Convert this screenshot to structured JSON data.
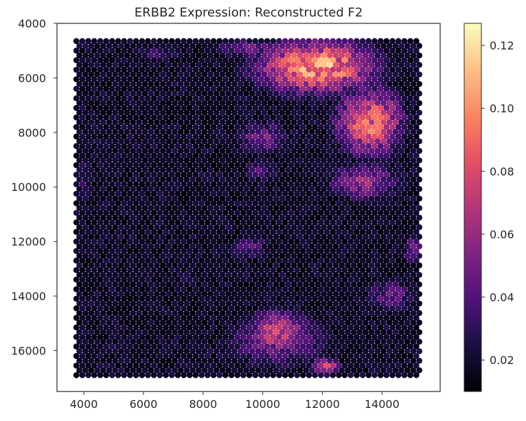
{
  "chart_data": {
    "type": "heatmap",
    "subtype": "hexbin-spatial-scatter",
    "title": "ERBB2 Expression: Reconstructed F2",
    "xlabel": "",
    "ylabel": "",
    "xlim": [
      3100,
      15950
    ],
    "ylim": [
      17500,
      4000
    ],
    "y_inverted": true,
    "x_ticks": [
      4000,
      6000,
      8000,
      10000,
      12000,
      14000
    ],
    "x_tick_labels": [
      "4000",
      "6000",
      "8000",
      "10000",
      "12000",
      "14000"
    ],
    "y_ticks": [
      4000,
      6000,
      8000,
      10000,
      12000,
      14000,
      16000
    ],
    "y_tick_labels": [
      "4000",
      "6000",
      "8000",
      "10000",
      "12000",
      "14000",
      "16000"
    ],
    "grid": false,
    "colormap": "magma",
    "colorbar": {
      "vmin": 0.01,
      "vmax": 0.127,
      "ticks": [
        0.02,
        0.04,
        0.06,
        0.08,
        0.1,
        0.12
      ],
      "tick_labels": [
        "0.02",
        "0.04",
        "0.06",
        "0.08",
        "0.10",
        "0.12"
      ]
    },
    "spot_grid": {
      "x_range": [
        3750,
        15300
      ],
      "y_range": [
        4650,
        16900
      ],
      "spacing_x": 200,
      "spacing_y": 175,
      "background_value": 0.015
    },
    "high_expression_regions": [
      {
        "name": "upper-right-tumor",
        "cx": 11800,
        "cy": 5600,
        "rx": 2700,
        "ry": 1300,
        "value": 0.105
      },
      {
        "name": "upper-right-extension",
        "cx": 13600,
        "cy": 7600,
        "rx": 1500,
        "ry": 1700,
        "value": 0.09
      },
      {
        "name": "upper-band",
        "cx": 9500,
        "cy": 4900,
        "rx": 2000,
        "ry": 500,
        "value": 0.045
      },
      {
        "name": "right-lobe-mid",
        "cx": 13400,
        "cy": 9800,
        "rx": 1700,
        "ry": 1000,
        "value": 0.058
      },
      {
        "name": "left-lobe-mid",
        "cx": 10000,
        "cy": 8200,
        "rx": 1200,
        "ry": 900,
        "value": 0.05
      },
      {
        "name": "left-lobe-lower",
        "cx": 9900,
        "cy": 9400,
        "rx": 900,
        "ry": 600,
        "value": 0.04
      },
      {
        "name": "middle-band",
        "cx": 9600,
        "cy": 12200,
        "rx": 1000,
        "ry": 700,
        "value": 0.04
      },
      {
        "name": "right-edge-mid",
        "cx": 15100,
        "cy": 12300,
        "rx": 500,
        "ry": 700,
        "value": 0.055
      },
      {
        "name": "right-lower",
        "cx": 14300,
        "cy": 14000,
        "rx": 1200,
        "ry": 900,
        "value": 0.045
      },
      {
        "name": "bottom-center-core",
        "cx": 10500,
        "cy": 15300,
        "rx": 1300,
        "ry": 1100,
        "value": 0.08
      },
      {
        "name": "bottom-center-wide",
        "cx": 10500,
        "cy": 15600,
        "rx": 2500,
        "ry": 1500,
        "value": 0.05
      },
      {
        "name": "bottom-right-spot",
        "cx": 12100,
        "cy": 16600,
        "rx": 700,
        "ry": 400,
        "value": 0.075
      },
      {
        "name": "top-left-strip",
        "cx": 6500,
        "cy": 5100,
        "rx": 1400,
        "ry": 500,
        "value": 0.035
      },
      {
        "name": "left-edge",
        "cx": 4000,
        "cy": 9800,
        "rx": 500,
        "ry": 2000,
        "value": 0.03
      }
    ]
  }
}
